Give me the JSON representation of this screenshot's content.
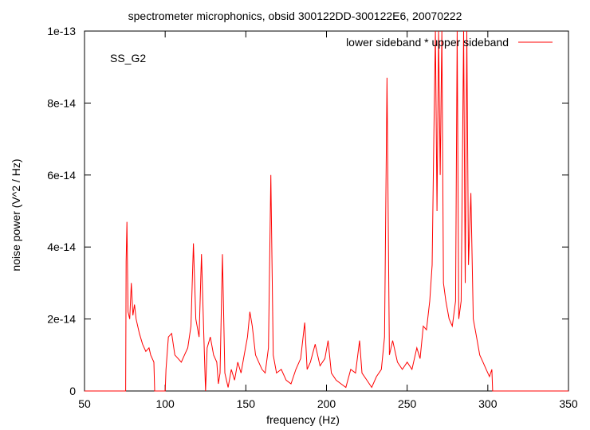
{
  "chart_data": {
    "type": "line",
    "title": "spectrometer microphonics, obsid 300122DD-300122E6, 20070222",
    "xlabel": "frequency (Hz)",
    "ylabel": "noise power (V^2 / Hz)",
    "annotation": "SS_G2",
    "xlim": [
      50,
      350
    ],
    "ylim": [
      0,
      1e-13
    ],
    "x_ticks": [
      50,
      100,
      150,
      200,
      250,
      300,
      350
    ],
    "x_tick_labels": [
      "50",
      "100",
      "150",
      "200",
      "250",
      "300",
      "350"
    ],
    "y_ticks": [
      0,
      2e-14,
      4e-14,
      6e-14,
      8e-14,
      1e-13
    ],
    "y_tick_labels": [
      "0",
      "2e-14",
      "4e-14",
      "6e-14",
      "8e-14",
      "1e-13"
    ],
    "grid": false,
    "legend_position": "top-right",
    "series": [
      {
        "name": "lower sideband * upper sideband",
        "color": "#ff0000",
        "points": [
          [
            50,
            0
          ],
          [
            75.5,
            0
          ],
          [
            75.8,
            3.6e-14
          ],
          [
            76.3,
            4.7e-14
          ],
          [
            77,
            2.2e-14
          ],
          [
            78,
            2e-14
          ],
          [
            79,
            3e-14
          ],
          [
            80,
            2.1e-14
          ],
          [
            81,
            2.4e-14
          ],
          [
            82,
            2e-14
          ],
          [
            84,
            1.6e-14
          ],
          [
            86,
            1.3e-14
          ],
          [
            88,
            1.1e-14
          ],
          [
            90,
            1.2e-14
          ],
          [
            91,
            1e-14
          ],
          [
            93,
            8e-15
          ],
          [
            93.5,
            0
          ],
          [
            100,
            0
          ],
          [
            100.5,
            6e-15
          ],
          [
            102,
            1.5e-14
          ],
          [
            104,
            1.6e-14
          ],
          [
            106,
            1e-14
          ],
          [
            108,
            9e-15
          ],
          [
            110,
            8e-15
          ],
          [
            112,
            1e-14
          ],
          [
            114,
            1.2e-14
          ],
          [
            116,
            1.8e-14
          ],
          [
            117.5,
            4.1e-14
          ],
          [
            119,
            2e-14
          ],
          [
            121,
            1.5e-14
          ],
          [
            122.5,
            3.8e-14
          ],
          [
            124,
            1.5e-14
          ],
          [
            125,
            0
          ],
          [
            126,
            1.2e-14
          ],
          [
            128,
            1.5e-14
          ],
          [
            130,
            1e-14
          ],
          [
            132,
            8e-15
          ],
          [
            133,
            2e-15
          ],
          [
            134,
            5e-15
          ],
          [
            135.5,
            3.8e-14
          ],
          [
            137,
            5e-15
          ],
          [
            139,
            1e-15
          ],
          [
            141,
            6e-15
          ],
          [
            143,
            3e-15
          ],
          [
            145,
            8e-15
          ],
          [
            147,
            5e-15
          ],
          [
            149,
            1e-14
          ],
          [
            151,
            1.5e-14
          ],
          [
            152.5,
            2.2e-14
          ],
          [
            154,
            1.8e-14
          ],
          [
            156,
            1e-14
          ],
          [
            158,
            8e-15
          ],
          [
            160,
            6e-15
          ],
          [
            162,
            5e-15
          ],
          [
            164,
            1.2e-14
          ],
          [
            165.5,
            6e-14
          ],
          [
            167,
            1e-14
          ],
          [
            169,
            5e-15
          ],
          [
            172,
            6e-15
          ],
          [
            175,
            3e-15
          ],
          [
            178,
            2e-15
          ],
          [
            181,
            6e-15
          ],
          [
            184,
            9e-15
          ],
          [
            186.5,
            1.9e-14
          ],
          [
            188,
            6e-15
          ],
          [
            190,
            8e-15
          ],
          [
            193,
            1.3e-14
          ],
          [
            196,
            7e-15
          ],
          [
            199,
            9e-15
          ],
          [
            201,
            1.4e-14
          ],
          [
            203,
            5e-15
          ],
          [
            206,
            3e-15
          ],
          [
            209,
            2e-15
          ],
          [
            212,
            1e-15
          ],
          [
            215,
            6e-15
          ],
          [
            218,
            5e-15
          ],
          [
            220.5,
            1.4e-14
          ],
          [
            222,
            5e-15
          ],
          [
            225,
            3e-15
          ],
          [
            228,
            1e-15
          ],
          [
            231,
            4e-15
          ],
          [
            234,
            6e-15
          ],
          [
            236,
            1.5e-14
          ],
          [
            237.5,
            8.7e-14
          ],
          [
            239,
            1e-14
          ],
          [
            241,
            1.4e-14
          ],
          [
            244,
            8e-15
          ],
          [
            247,
            6e-15
          ],
          [
            250,
            8e-15
          ],
          [
            253,
            6e-15
          ],
          [
            256,
            1.2e-14
          ],
          [
            258,
            9e-15
          ],
          [
            260,
            1.8e-14
          ],
          [
            262,
            1.7e-14
          ],
          [
            264,
            2.5e-14
          ],
          [
            265.5,
            3.5e-14
          ],
          [
            266.5,
            7e-14
          ],
          [
            267.5,
            1e-13
          ],
          [
            268.5,
            5e-14
          ],
          [
            269.5,
            1e-13
          ],
          [
            270.5,
            6e-14
          ],
          [
            271.5,
            1e-13
          ],
          [
            272.5,
            3e-14
          ],
          [
            274,
            2.5e-14
          ],
          [
            276,
            2e-14
          ],
          [
            278,
            1.8e-14
          ],
          [
            280,
            2.5e-14
          ],
          [
            281,
            1e-13
          ],
          [
            282,
            2e-14
          ],
          [
            283.5,
            2.5e-14
          ],
          [
            285,
            1e-13
          ],
          [
            286,
            3e-14
          ],
          [
            287,
            1e-13
          ],
          [
            288,
            3.5e-14
          ],
          [
            289.5,
            5.5e-14
          ],
          [
            291,
            2e-14
          ],
          [
            293,
            1.5e-14
          ],
          [
            295,
            1e-14
          ],
          [
            297,
            8e-15
          ],
          [
            299,
            6e-15
          ],
          [
            301,
            4e-15
          ],
          [
            302.5,
            6e-15
          ],
          [
            303,
            0
          ],
          [
            350,
            0
          ]
        ]
      }
    ]
  }
}
